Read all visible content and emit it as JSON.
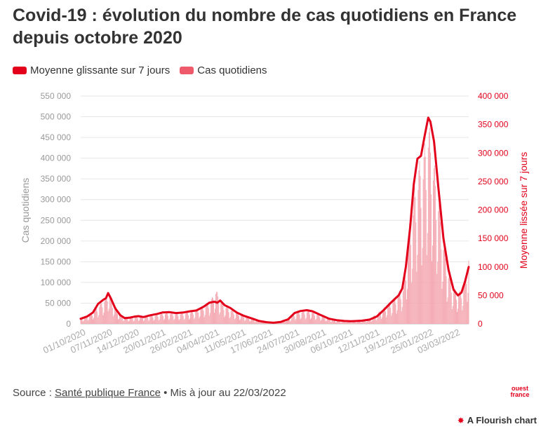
{
  "title": "Covid-19 : évolution du nombre de cas quotidiens en France depuis octobre 2020",
  "legend": {
    "items": [
      {
        "label": "Moyenne glissante sur 7 jours",
        "color": "#e2001a"
      },
      {
        "label": "Cas quotidiens",
        "color": "#ee5a6a"
      }
    ]
  },
  "footer": {
    "prefix": "Source : ",
    "source_link": "Santé publique France",
    "suffix": " • Mis à jour au 22/03/2022"
  },
  "brand": {
    "line1": "ouest",
    "line2": "france"
  },
  "flourish": {
    "label": "A Flourish chart",
    "icon": "flourish-star-icon"
  },
  "chart_data": {
    "type": "bar+line",
    "x_start": "2020-10-01",
    "x_end": "2022-03-22",
    "x_tick_labels": [
      "01/10/2020",
      "07/11/2020",
      "14/12/2020",
      "20/01/2021",
      "26/02/2021",
      "04/04/2021",
      "11/05/2021",
      "17/06/2021",
      "24/07/2021",
      "30/08/2021",
      "06/10/2021",
      "12/11/2021",
      "19/12/2021",
      "25/01/2022",
      "03/03/2022"
    ],
    "x_tick_dates": [
      "2020-10-01",
      "2020-11-07",
      "2020-12-14",
      "2021-01-20",
      "2021-02-26",
      "2021-04-04",
      "2021-05-11",
      "2021-06-17",
      "2021-07-24",
      "2021-08-30",
      "2021-10-06",
      "2021-11-12",
      "2021-12-19",
      "2022-01-25",
      "2022-03-03"
    ],
    "y_left": {
      "label": "Cas quotidiens",
      "range": [
        0,
        550000
      ],
      "ticks": [
        0,
        50000,
        100000,
        150000,
        200000,
        250000,
        300000,
        350000,
        400000,
        450000,
        500000,
        550000
      ],
      "tick_labels": [
        "0",
        "50 000",
        "100 000",
        "150 000",
        "200 000",
        "250 000",
        "300 000",
        "350 000",
        "400 000",
        "450 000",
        "500 000",
        "550 000"
      ]
    },
    "y_right": {
      "label": "Moyenne lissée sur 7 jours",
      "range": [
        0,
        400000
      ],
      "ticks": [
        0,
        50000,
        100000,
        150000,
        200000,
        250000,
        300000,
        350000,
        400000
      ],
      "tick_labels": [
        "0",
        "50 000",
        "100 000",
        "150 000",
        "200 000",
        "250 000",
        "300 000",
        "350 000",
        "400 000"
      ],
      "color": "#e2001a"
    },
    "series": [
      {
        "name": "Moyenne glissante sur 7 jours",
        "kind": "line",
        "axis": "right",
        "color": "#e2001a",
        "points": [
          [
            "2020-10-01",
            9000
          ],
          [
            "2020-10-10",
            13000
          ],
          [
            "2020-10-18",
            20000
          ],
          [
            "2020-10-25",
            35000
          ],
          [
            "2020-11-01",
            42000
          ],
          [
            "2020-11-05",
            45000
          ],
          [
            "2020-11-08",
            54000
          ],
          [
            "2020-11-12",
            44000
          ],
          [
            "2020-11-18",
            27000
          ],
          [
            "2020-11-25",
            15000
          ],
          [
            "2020-12-01",
            10000
          ],
          [
            "2020-12-08",
            11000
          ],
          [
            "2020-12-14",
            12500
          ],
          [
            "2020-12-20",
            13500
          ],
          [
            "2020-12-27",
            12000
          ],
          [
            "2021-01-05",
            15000
          ],
          [
            "2021-01-15",
            17500
          ],
          [
            "2021-01-22",
            20000
          ],
          [
            "2021-02-01",
            20500
          ],
          [
            "2021-02-10",
            19000
          ],
          [
            "2021-02-20",
            20000
          ],
          [
            "2021-03-01",
            22000
          ],
          [
            "2021-03-10",
            23500
          ],
          [
            "2021-03-20",
            30000
          ],
          [
            "2021-03-28",
            37000
          ],
          [
            "2021-04-04",
            39000
          ],
          [
            "2021-04-08",
            37000
          ],
          [
            "2021-04-12",
            41000
          ],
          [
            "2021-04-18",
            33000
          ],
          [
            "2021-04-26",
            28000
          ],
          [
            "2021-05-05",
            20000
          ],
          [
            "2021-05-15",
            14000
          ],
          [
            "2021-05-25",
            10000
          ],
          [
            "2021-06-05",
            5000
          ],
          [
            "2021-06-15",
            3000
          ],
          [
            "2021-06-25",
            2000
          ],
          [
            "2021-07-05",
            3500
          ],
          [
            "2021-07-15",
            8000
          ],
          [
            "2021-07-24",
            19000
          ],
          [
            "2021-08-01",
            22500
          ],
          [
            "2021-08-10",
            24000
          ],
          [
            "2021-08-18",
            22000
          ],
          [
            "2021-08-30",
            15000
          ],
          [
            "2021-09-10",
            9000
          ],
          [
            "2021-09-20",
            6500
          ],
          [
            "2021-10-01",
            5000
          ],
          [
            "2021-10-10",
            4500
          ],
          [
            "2021-10-25",
            5500
          ],
          [
            "2021-11-05",
            7500
          ],
          [
            "2021-11-15",
            13000
          ],
          [
            "2021-11-25",
            25000
          ],
          [
            "2021-12-05",
            38000
          ],
          [
            "2021-12-15",
            50000
          ],
          [
            "2021-12-20",
            62000
          ],
          [
            "2021-12-25",
            100000
          ],
          [
            "2021-12-31",
            170000
          ],
          [
            "2022-01-05",
            245000
          ],
          [
            "2022-01-10",
            290000
          ],
          [
            "2022-01-15",
            295000
          ],
          [
            "2022-01-20",
            330000
          ],
          [
            "2022-01-25",
            362000
          ],
          [
            "2022-01-28",
            355000
          ],
          [
            "2022-02-02",
            320000
          ],
          [
            "2022-02-08",
            240000
          ],
          [
            "2022-02-15",
            150000
          ],
          [
            "2022-02-22",
            95000
          ],
          [
            "2022-03-01",
            60000
          ],
          [
            "2022-03-07",
            50000
          ],
          [
            "2022-03-12",
            55000
          ],
          [
            "2022-03-17",
            75000
          ],
          [
            "2022-03-22",
            100000
          ]
        ]
      },
      {
        "name": "Cas quotidiens",
        "kind": "bar",
        "axis": "left",
        "color": "#ee5a6a",
        "envelope_points": [
          [
            "2020-10-01",
            14000
          ],
          [
            "2020-10-15",
            25000
          ],
          [
            "2020-10-28",
            50000
          ],
          [
            "2020-11-06",
            70000
          ],
          [
            "2020-11-08",
            86000
          ],
          [
            "2020-11-14",
            55000
          ],
          [
            "2020-11-25",
            22000
          ],
          [
            "2020-12-05",
            16000
          ],
          [
            "2020-12-20",
            19000
          ],
          [
            "2021-01-10",
            22000
          ],
          [
            "2021-01-28",
            28000
          ],
          [
            "2021-02-15",
            26000
          ],
          [
            "2021-03-05",
            31000
          ],
          [
            "2021-03-25",
            50000
          ],
          [
            "2021-04-01",
            65000
          ],
          [
            "2021-04-06",
            85000
          ],
          [
            "2021-04-15",
            50000
          ],
          [
            "2021-05-01",
            32000
          ],
          [
            "2021-05-20",
            18000
          ],
          [
            "2021-06-10",
            7000
          ],
          [
            "2021-06-28",
            4000
          ],
          [
            "2021-07-15",
            14000
          ],
          [
            "2021-07-30",
            32000
          ],
          [
            "2021-08-15",
            32000
          ],
          [
            "2021-09-01",
            20000
          ],
          [
            "2021-09-20",
            9000
          ],
          [
            "2021-10-15",
            7000
          ],
          [
            "2021-11-05",
            12000
          ],
          [
            "2021-11-25",
            40000
          ],
          [
            "2021-12-10",
            65000
          ],
          [
            "2021-12-22",
            95000
          ],
          [
            "2021-12-31",
            260000
          ],
          [
            "2022-01-05",
            320000
          ],
          [
            "2022-01-12",
            390000
          ],
          [
            "2022-01-18",
            410000
          ],
          [
            "2022-01-25",
            500000
          ],
          [
            "2022-01-31",
            420000
          ],
          [
            "2022-02-08",
            320000
          ],
          [
            "2022-02-15",
            210000
          ],
          [
            "2022-02-22",
            130000
          ],
          [
            "2022-03-02",
            85000
          ],
          [
            "2022-03-10",
            80000
          ],
          [
            "2022-03-17",
            110000
          ],
          [
            "2022-03-22",
            180000
          ]
        ]
      }
    ],
    "grid": true,
    "legend_position": "top-left"
  }
}
